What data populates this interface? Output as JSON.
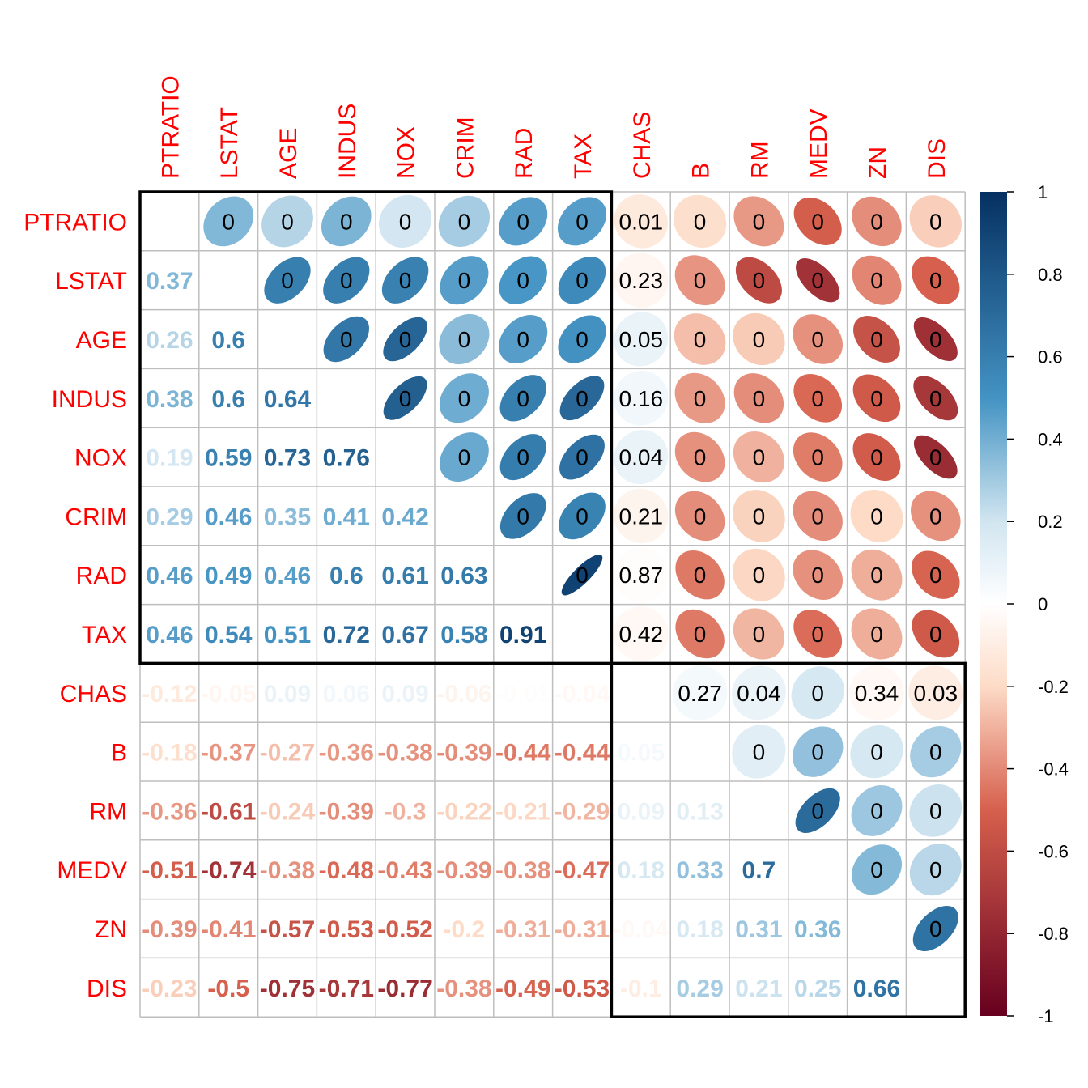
{
  "chart_data": {
    "type": "heatmap",
    "title": "",
    "xlabel": "",
    "ylabel": "",
    "variables": [
      "PTRATIO",
      "LSTAT",
      "AGE",
      "INDUS",
      "NOX",
      "CRIM",
      "RAD",
      "TAX",
      "CHAS",
      "B",
      "RM",
      "MEDV",
      "ZN",
      "DIS"
    ],
    "lower_labels": [
      [],
      [
        "0.37"
      ],
      [
        "0.26",
        "0.6"
      ],
      [
        "0.38",
        "0.6",
        "0.64"
      ],
      [
        "0.19",
        "0.59",
        "0.73",
        "0.76"
      ],
      [
        "0.29",
        "0.46",
        "0.35",
        "0.41",
        "0.42"
      ],
      [
        "0.46",
        "0.49",
        "0.46",
        "0.6",
        "0.61",
        "0.63"
      ],
      [
        "0.46",
        "0.54",
        "0.51",
        "0.72",
        "0.67",
        "0.58",
        "0.91"
      ],
      [
        "-0.12",
        "-0.05",
        "0.09",
        "0.06",
        "0.09",
        "-0.06",
        "-0.01",
        "-0.04"
      ],
      [
        "-0.18",
        "-0.37",
        "-0.27",
        "-0.36",
        "-0.38",
        "-0.39",
        "-0.44",
        "-0.44",
        "0.05"
      ],
      [
        "-0.36",
        "-0.61",
        "-0.24",
        "-0.39",
        "-0.3",
        "-0.22",
        "-0.21",
        "-0.29",
        "0.09",
        "0.13"
      ],
      [
        "-0.51",
        "-0.74",
        "-0.38",
        "-0.48",
        "-0.43",
        "-0.39",
        "-0.38",
        "-0.47",
        "0.18",
        "0.33",
        "0.7"
      ],
      [
        "-0.39",
        "-0.41",
        "-0.57",
        "-0.53",
        "-0.52",
        "-0.2",
        "-0.31",
        "-0.31",
        "-0.04",
        "0.18",
        "0.31",
        "0.36"
      ],
      [
        "-0.23",
        "-0.5",
        "-0.75",
        "-0.71",
        "-0.77",
        "-0.38",
        "-0.49",
        "-0.53",
        "-0.1",
        "0.29",
        "0.21",
        "0.25",
        "0.66"
      ]
    ],
    "upper_pvalue_labels": [
      [
        "",
        "0",
        "0",
        "0",
        "0",
        "0",
        "0",
        "0",
        "0.01",
        "0",
        "0",
        "0",
        "0",
        "0"
      ],
      [
        "",
        "",
        "0",
        "0",
        "0",
        "0",
        "0",
        "0",
        "0.23",
        "0",
        "0",
        "0",
        "0",
        "0"
      ],
      [
        "",
        "",
        "",
        "0",
        "0",
        "0",
        "0",
        "0",
        "0.05",
        "0",
        "0",
        "0",
        "0",
        "0"
      ],
      [
        "",
        "",
        "",
        "",
        "0",
        "0",
        "0",
        "0",
        "0.16",
        "0",
        "0",
        "0",
        "0",
        "0"
      ],
      [
        "",
        "",
        "",
        "",
        "",
        "0",
        "0",
        "0",
        "0.04",
        "0",
        "0",
        "0",
        "0",
        "0"
      ],
      [
        "",
        "",
        "",
        "",
        "",
        "",
        "0",
        "0",
        "0.21",
        "0",
        "0",
        "0",
        "0",
        "0"
      ],
      [
        "",
        "",
        "",
        "",
        "",
        "",
        "",
        "0",
        "0.87",
        "0",
        "0",
        "0",
        "0",
        "0"
      ],
      [
        "",
        "",
        "",
        "",
        "",
        "",
        "",
        "",
        "0.42",
        "0",
        "0",
        "0",
        "0",
        "0"
      ],
      [
        "",
        "",
        "",
        "",
        "",
        "",
        "",
        "",
        "",
        "0.27",
        "0.04",
        "0",
        "0.34",
        "0.03"
      ],
      [
        "",
        "",
        "",
        "",
        "",
        "",
        "",
        "",
        "",
        "",
        "0",
        "0",
        "0",
        "0"
      ],
      [
        "",
        "",
        "",
        "",
        "",
        "",
        "",
        "",
        "",
        "",
        "",
        "0",
        "0",
        "0"
      ],
      [
        "",
        "",
        "",
        "",
        "",
        "",
        "",
        "",
        "",
        "",
        "",
        "",
        "0",
        "0"
      ],
      [
        "",
        "",
        "",
        "",
        "",
        "",
        "",
        "",
        "",
        "",
        "",
        "",
        "",
        "0"
      ],
      [
        "",
        "",
        "",
        "",
        "",
        "",
        "",
        "",
        "",
        "",
        "",
        "",
        "",
        ""
      ]
    ],
    "clusters": [
      [
        0,
        7
      ],
      [
        8,
        13
      ]
    ],
    "colorbar": {
      "range": [
        -1,
        1
      ],
      "ticks": [
        "1",
        "0.8",
        "0.6",
        "0.4",
        "0.2",
        "0",
        "-0.2",
        "-0.4",
        "-0.6",
        "-0.8",
        "-1"
      ]
    },
    "palette": {
      "neg_strong": "#67001f",
      "neg_mid": "#d6604d",
      "neg_light": "#fddbc7",
      "zero": "#ffffff",
      "pos_light": "#d1e5f0",
      "pos_mid": "#4393c3",
      "pos_strong": "#053061",
      "label_color": "#ff0000",
      "grid_color": "#bebebe"
    }
  }
}
